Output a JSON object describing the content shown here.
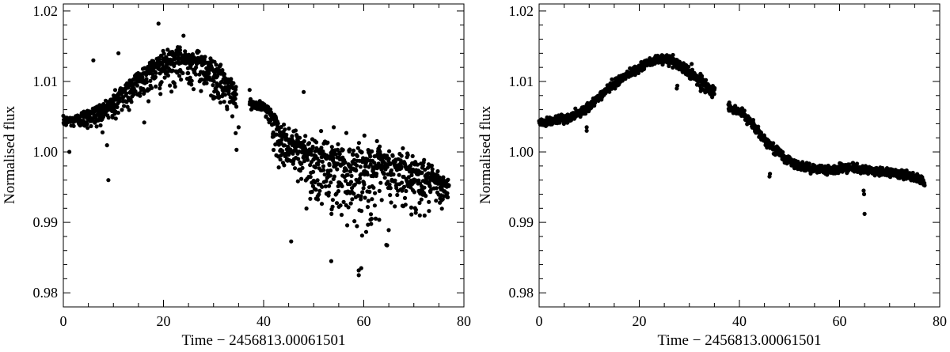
{
  "figure": {
    "panels": [
      {
        "id": "left",
        "xlabel": "Time − 2456813.00061501",
        "ylabel": "Normalised flux"
      },
      {
        "id": "right",
        "xlabel": "Time − 2456813.00061501",
        "ylabel": "Normalised flux"
      }
    ]
  },
  "chart_data": [
    {
      "type": "scatter",
      "title": "",
      "xlabel": "Time − 2456813.00061501",
      "ylabel": "Normalised flux",
      "xlim": [
        0,
        80
      ],
      "ylim": [
        0.978,
        1.021
      ],
      "xticks": [
        0,
        20,
        40,
        60,
        80
      ],
      "xtick_labels": [
        "0",
        "20",
        "40",
        "60",
        "80"
      ],
      "yticks": [
        0.98,
        0.99,
        1.0,
        1.01,
        1.02
      ],
      "ytick_labels": [
        "0.98",
        "0.99",
        "1.00",
        "1.01",
        "1.02"
      ],
      "grid": false,
      "marker_color": "#000000",
      "series": [
        {
          "trend_x": [
            0,
            2,
            5,
            8,
            10,
            12,
            15,
            18,
            20,
            22,
            24,
            26,
            28,
            30,
            32,
            34.5,
            37,
            38,
            40,
            41,
            42,
            43,
            44,
            46,
            48,
            50,
            52,
            55,
            58,
            60,
            62,
            65,
            68,
            70,
            72,
            74,
            76,
            77
          ],
          "trend_y": [
            1.0045,
            1.0046,
            1.0053,
            1.006,
            1.007,
            1.0085,
            1.0103,
            1.0118,
            1.0125,
            1.013,
            1.0132,
            1.013,
            1.0125,
            1.0115,
            1.01,
            1.008,
            1.007,
            1.0068,
            1.0065,
            1.006,
            1.004,
            1.0025,
            1.0018,
            1.0008,
            1.0,
            0.9993,
            0.9985,
            0.998,
            0.9978,
            0.9975,
            0.9976,
            0.9973,
            0.9975,
            0.997,
            0.9965,
            0.9958,
            0.9952,
            0.995
          ],
          "scatter_spread": [
            0.0004,
            0.0004,
            0.0008,
            0.001,
            0.0012,
            0.0012,
            0.0012,
            0.0014,
            0.0014,
            0.0014,
            0.0013,
            0.0013,
            0.0014,
            0.0015,
            0.0015,
            0.0015,
            0.0004,
            0.0004,
            0.0004,
            0.0005,
            0.0012,
            0.0016,
            0.0018,
            0.0022,
            0.0022,
            0.0025,
            0.0026,
            0.0028,
            0.003,
            0.003,
            0.003,
            0.0028,
            0.0025,
            0.0022,
            0.0018,
            0.0015,
            0.0012,
            0.001
          ],
          "gaps": [
            [
              34.6,
              37.2
            ]
          ],
          "outliers": [
            [
              1.2,
              1.0
            ],
            [
              6.0,
              1.013
            ],
            [
              9.0,
              0.996
            ],
            [
              11.0,
              1.014
            ],
            [
              19.0,
              1.0182
            ],
            [
              24.0,
              1.0165
            ],
            [
              29.5,
              1.008
            ],
            [
              34.6,
              1.0003
            ],
            [
              35.0,
              1.0035
            ],
            [
              37.2,
              1.0088
            ],
            [
              45.5,
              0.9873
            ],
            [
              48.0,
              1.0085
            ],
            [
              53.5,
              0.9845
            ],
            [
              54.0,
              1.0035
            ],
            [
              59.0,
              0.9825
            ],
            [
              59.5,
              0.9835
            ],
            [
              64.5,
              0.9868
            ]
          ]
        }
      ]
    },
    {
      "type": "scatter",
      "title": "",
      "xlabel": "Time − 2456813.00061501",
      "ylabel": "Normalised flux",
      "xlim": [
        0,
        80
      ],
      "ylim": [
        0.978,
        1.021
      ],
      "xticks": [
        0,
        20,
        40,
        60,
        80
      ],
      "xtick_labels": [
        "0",
        "20",
        "40",
        "60",
        "80"
      ],
      "yticks": [
        0.98,
        0.99,
        1.0,
        1.01,
        1.02
      ],
      "ytick_labels": [
        "0.98",
        "0.99",
        "1.00",
        "1.01",
        "1.02"
      ],
      "grid": false,
      "marker_color": "#000000",
      "series": [
        {
          "trend_x": [
            0,
            3,
            6,
            8,
            10,
            13,
            16,
            20,
            23,
            25,
            27,
            29,
            31,
            33,
            35,
            38,
            40,
            42,
            43,
            45,
            47,
            49,
            51,
            53,
            55,
            58,
            60,
            62,
            65,
            68,
            71,
            74,
            76,
            77
          ],
          "trend_y": [
            1.0042,
            1.0044,
            1.0048,
            1.0055,
            1.0065,
            1.0085,
            1.0102,
            1.012,
            1.013,
            1.0132,
            1.0127,
            1.0118,
            1.0108,
            1.0095,
            1.0085,
            1.0062,
            1.0058,
            1.0045,
            1.0035,
            1.0018,
            1.0005,
            0.9992,
            0.9983,
            0.9978,
            0.9976,
            0.9975,
            0.9977,
            0.9978,
            0.9974,
            0.9972,
            0.997,
            0.9965,
            0.996,
            0.9955
          ],
          "scatter_spread": [
            0.0003,
            0.0003,
            0.0003,
            0.0003,
            0.0003,
            0.0003,
            0.0003,
            0.0003,
            0.0003,
            0.0003,
            0.0004,
            0.0004,
            0.0004,
            0.0004,
            0.0004,
            0.0003,
            0.0003,
            0.0003,
            0.0003,
            0.0003,
            0.0003,
            0.0003,
            0.0003,
            0.0003,
            0.0003,
            0.0003,
            0.0003,
            0.0003,
            0.0003,
            0.0003,
            0.0003,
            0.0003,
            0.0003,
            0.0003
          ],
          "gaps": [
            [
              35.1,
              37.8
            ]
          ],
          "outliers": [
            [
              9.5,
              1.003
            ],
            [
              9.5,
              1.0035
            ],
            [
              27.5,
              1.009
            ],
            [
              27.6,
              1.0094
            ],
            [
              46.0,
              0.9965
            ],
            [
              46.1,
              0.9969
            ],
            [
              64.8,
              0.9945
            ],
            [
              64.9,
              0.994
            ],
            [
              65.0,
              0.9912
            ]
          ]
        }
      ]
    }
  ]
}
